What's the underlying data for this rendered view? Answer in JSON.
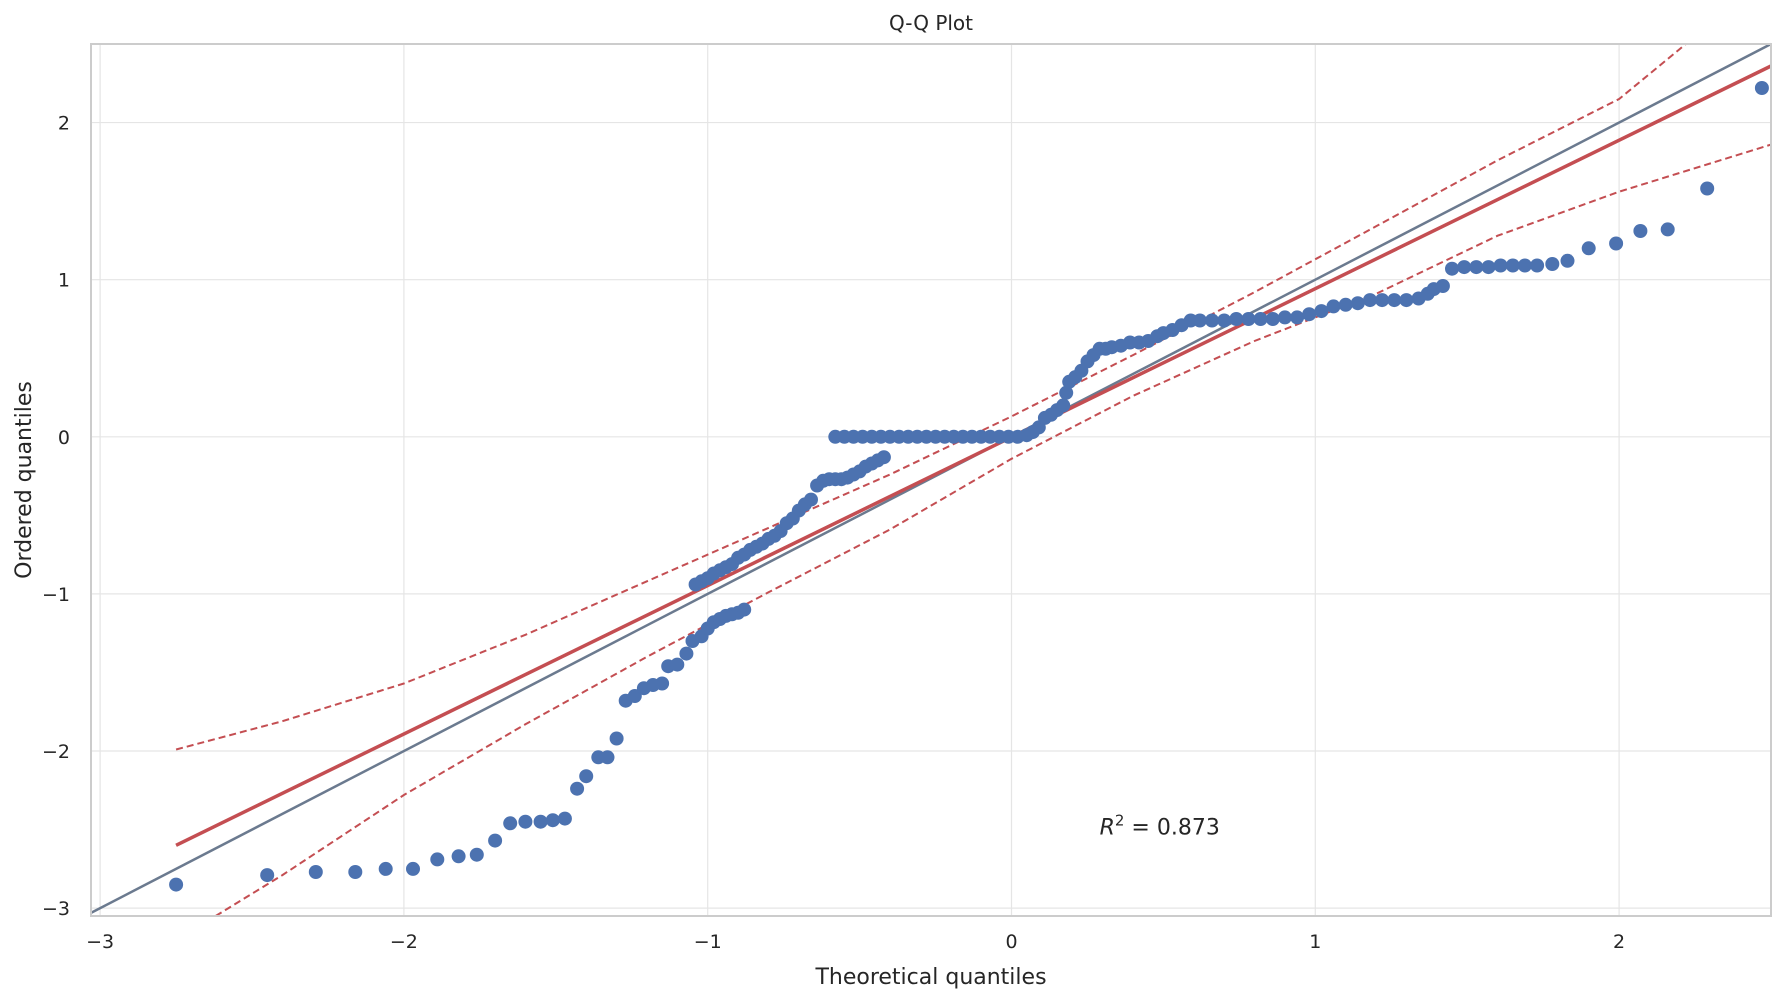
{
  "chart_data": {
    "type": "scatter",
    "title": "Q-Q Plot",
    "xlabel": "Theoretical quantiles",
    "ylabel": "Ordered quantiles",
    "xlim": [
      -3.03,
      2.5
    ],
    "ylim": [
      -3.05,
      2.5
    ],
    "x_ticks": [
      -3,
      -2,
      -1,
      0,
      1,
      2
    ],
    "y_ticks": [
      -3,
      -2,
      -1,
      0,
      1,
      2
    ],
    "x_tick_labels": [
      "−3",
      "−2",
      "−1",
      "0",
      "1",
      "2"
    ],
    "y_tick_labels": [
      "−3",
      "−2",
      "−1",
      "0",
      "1",
      "2"
    ],
    "grid": true,
    "annotation": {
      "text_main": "R",
      "text_sup": "2",
      "text_rest": " = 0.873",
      "x": 0.29,
      "y": -2.48
    },
    "reference_line": {
      "color": "#6b7a8f",
      "points": [
        [
          -3.03,
          -3.03
        ],
        [
          2.5,
          2.5
        ]
      ]
    },
    "fit_line": {
      "color": "#c44e52",
      "points": [
        [
          -2.75,
          -2.6
        ],
        [
          2.5,
          2.36
        ]
      ]
    },
    "confidence_band": {
      "color": "#c44e52",
      "upper": [
        [
          -2.75,
          -1.99
        ],
        [
          -2.4,
          -1.81
        ],
        [
          -2.0,
          -1.57
        ],
        [
          -1.6,
          -1.26
        ],
        [
          -1.2,
          -0.92
        ],
        [
          -0.8,
          -0.58
        ],
        [
          -0.4,
          -0.24
        ],
        [
          0.0,
          0.13
        ],
        [
          0.4,
          0.52
        ],
        [
          0.8,
          0.92
        ],
        [
          1.2,
          1.34
        ],
        [
          1.6,
          1.76
        ],
        [
          2.0,
          2.15
        ],
        [
          2.22,
          2.5
        ]
      ],
      "lower": [
        [
          -2.62,
          -3.05
        ],
        [
          -2.4,
          -2.79
        ],
        [
          -2.0,
          -2.28
        ],
        [
          -1.6,
          -1.83
        ],
        [
          -1.2,
          -1.4
        ],
        [
          -0.8,
          -0.99
        ],
        [
          -0.4,
          -0.59
        ],
        [
          0.0,
          -0.14
        ],
        [
          0.4,
          0.26
        ],
        [
          0.8,
          0.61
        ],
        [
          1.2,
          0.91
        ],
        [
          1.6,
          1.28
        ],
        [
          2.0,
          1.56
        ],
        [
          2.5,
          1.86
        ]
      ]
    },
    "point_color": "#4c72b0",
    "series": [
      {
        "values": [
          [
            -2.75,
            -2.85
          ],
          [
            -2.45,
            -2.79
          ],
          [
            -2.29,
            -2.77
          ],
          [
            -2.16,
            -2.77
          ],
          [
            -2.06,
            -2.75
          ],
          [
            -1.97,
            -2.75
          ],
          [
            -1.89,
            -2.69
          ],
          [
            -1.82,
            -2.67
          ],
          [
            -1.76,
            -2.66
          ],
          [
            -1.7,
            -2.57
          ],
          [
            -1.65,
            -2.46
          ],
          [
            -1.6,
            -2.45
          ],
          [
            -1.55,
            -2.45
          ],
          [
            -1.51,
            -2.44
          ],
          [
            -1.47,
            -2.43
          ],
          [
            -1.43,
            -2.24
          ],
          [
            -1.4,
            -2.16
          ],
          [
            -1.36,
            -2.04
          ],
          [
            -1.33,
            -2.04
          ],
          [
            -1.3,
            -1.92
          ],
          [
            -1.27,
            -1.68
          ],
          [
            -1.24,
            -1.65
          ],
          [
            -1.21,
            -1.6
          ],
          [
            -1.18,
            -1.58
          ],
          [
            -1.15,
            -1.57
          ],
          [
            -1.13,
            -1.46
          ],
          [
            -1.1,
            -1.45
          ],
          [
            -1.07,
            -1.38
          ],
          [
            -1.05,
            -1.3
          ],
          [
            -1.02,
            -1.27
          ],
          [
            -1.0,
            -1.22
          ],
          [
            -0.98,
            -1.18
          ],
          [
            -0.96,
            -1.16
          ],
          [
            -0.94,
            -1.14
          ],
          [
            -0.92,
            -1.13
          ],
          [
            -0.9,
            -1.12
          ],
          [
            -0.88,
            -1.1
          ],
          [
            -1.04,
            -0.94
          ],
          [
            -1.02,
            -0.92
          ],
          [
            -1.0,
            -0.9
          ],
          [
            -0.98,
            -0.87
          ],
          [
            -0.96,
            -0.85
          ],
          [
            -0.94,
            -0.83
          ],
          [
            -0.92,
            -0.81
          ],
          [
            -0.9,
            -0.77
          ],
          [
            -0.88,
            -0.75
          ],
          [
            -0.86,
            -0.72
          ],
          [
            -0.84,
            -0.7
          ],
          [
            -0.82,
            -0.68
          ],
          [
            -0.8,
            -0.65
          ],
          [
            -0.78,
            -0.63
          ],
          [
            -0.76,
            -0.6
          ],
          [
            -0.74,
            -0.55
          ],
          [
            -0.72,
            -0.52
          ],
          [
            -0.7,
            -0.47
          ],
          [
            -0.68,
            -0.43
          ],
          [
            -0.66,
            -0.4
          ],
          [
            -0.64,
            -0.31
          ],
          [
            -0.62,
            -0.28
          ],
          [
            -0.6,
            -0.27
          ],
          [
            -0.58,
            -0.27
          ],
          [
            -0.56,
            -0.27
          ],
          [
            -0.54,
            -0.26
          ],
          [
            -0.52,
            -0.24
          ],
          [
            -0.5,
            -0.22
          ],
          [
            -0.48,
            -0.19
          ],
          [
            -0.46,
            -0.17
          ],
          [
            -0.44,
            -0.15
          ],
          [
            -0.42,
            -0.13
          ],
          [
            -0.58,
            0.0
          ],
          [
            -0.55,
            0.0
          ],
          [
            -0.52,
            0.0
          ],
          [
            -0.49,
            0.0
          ],
          [
            -0.46,
            0.0
          ],
          [
            -0.43,
            0.0
          ],
          [
            -0.4,
            0.0
          ],
          [
            -0.37,
            0.0
          ],
          [
            -0.34,
            0.0
          ],
          [
            -0.31,
            0.0
          ],
          [
            -0.28,
            0.0
          ],
          [
            -0.25,
            0.0
          ],
          [
            -0.22,
            0.0
          ],
          [
            -0.19,
            0.0
          ],
          [
            -0.16,
            0.0
          ],
          [
            -0.13,
            0.0
          ],
          [
            -0.1,
            0.0
          ],
          [
            -0.07,
            0.0
          ],
          [
            -0.04,
            0.0
          ],
          [
            -0.01,
            0.0
          ],
          [
            0.02,
            0.0
          ],
          [
            0.05,
            0.01
          ],
          [
            0.07,
            0.03
          ],
          [
            0.09,
            0.06
          ],
          [
            0.11,
            0.12
          ],
          [
            0.13,
            0.14
          ],
          [
            0.15,
            0.17
          ],
          [
            0.17,
            0.2
          ],
          [
            0.18,
            0.28
          ],
          [
            0.19,
            0.35
          ],
          [
            0.21,
            0.38
          ],
          [
            0.23,
            0.42
          ],
          [
            0.25,
            0.48
          ],
          [
            0.27,
            0.52
          ],
          [
            0.29,
            0.56
          ],
          [
            0.31,
            0.56
          ],
          [
            0.33,
            0.57
          ],
          [
            0.36,
            0.58
          ],
          [
            0.39,
            0.6
          ],
          [
            0.42,
            0.6
          ],
          [
            0.45,
            0.61
          ],
          [
            0.48,
            0.64
          ],
          [
            0.5,
            0.66
          ],
          [
            0.53,
            0.68
          ],
          [
            0.56,
            0.71
          ],
          [
            0.59,
            0.74
          ],
          [
            0.62,
            0.74
          ],
          [
            0.66,
            0.74
          ],
          [
            0.7,
            0.74
          ],
          [
            0.74,
            0.75
          ],
          [
            0.78,
            0.75
          ],
          [
            0.82,
            0.75
          ],
          [
            0.86,
            0.75
          ],
          [
            0.9,
            0.76
          ],
          [
            0.94,
            0.76
          ],
          [
            0.98,
            0.78
          ],
          [
            1.02,
            0.8
          ],
          [
            1.06,
            0.83
          ],
          [
            1.1,
            0.84
          ],
          [
            1.14,
            0.85
          ],
          [
            1.18,
            0.87
          ],
          [
            1.22,
            0.87
          ],
          [
            1.26,
            0.87
          ],
          [
            1.3,
            0.87
          ],
          [
            1.34,
            0.88
          ],
          [
            1.37,
            0.91
          ],
          [
            1.39,
            0.94
          ],
          [
            1.42,
            0.96
          ],
          [
            1.45,
            1.07
          ],
          [
            1.49,
            1.08
          ],
          [
            1.53,
            1.08
          ],
          [
            1.57,
            1.08
          ],
          [
            1.61,
            1.09
          ],
          [
            1.65,
            1.09
          ],
          [
            1.69,
            1.09
          ],
          [
            1.73,
            1.09
          ],
          [
            1.78,
            1.1
          ],
          [
            1.83,
            1.12
          ],
          [
            1.9,
            1.2
          ],
          [
            1.99,
            1.23
          ],
          [
            2.07,
            1.31
          ],
          [
            2.16,
            1.32
          ],
          [
            2.29,
            1.58
          ],
          [
            2.47,
            2.22
          ]
        ]
      }
    ]
  }
}
